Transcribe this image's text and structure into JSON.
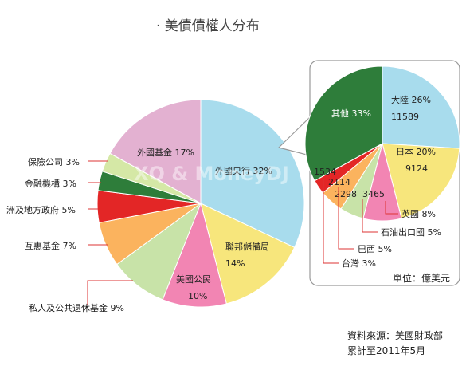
{
  "title": "· 美債債權人分布",
  "source_line1": "資料來源：美國財政部",
  "source_line2": "累計至2011年5月",
  "unit_label": "單位：億美元",
  "watermark": "XQ & MoneyDJ",
  "chart_data": [
    {
      "type": "pie",
      "title": "美債債權人分布",
      "slices": [
        {
          "name": "外國央行",
          "pct_label": "32%",
          "value": 32,
          "color": "#a8dced"
        },
        {
          "name": "聯邦儲備局",
          "pct_label": "14%",
          "value": 14,
          "color": "#f7e67c"
        },
        {
          "name": "美國公民",
          "pct_label": "10%",
          "value": 10,
          "color": "#f285b3"
        },
        {
          "name": "私人及公共退休基金",
          "pct_label": "9%",
          "value": 9,
          "color": "#c8e3a8"
        },
        {
          "name": "互惠基金",
          "pct_label": "7%",
          "value": 7,
          "color": "#fbb35e"
        },
        {
          "name": "洲及地方政府",
          "pct_label": "5%",
          "value": 5,
          "color": "#e32626"
        },
        {
          "name": "金融機構",
          "pct_label": "3%",
          "value": 3,
          "color": "#2e7d3a"
        },
        {
          "name": "保險公司",
          "pct_label": "3%",
          "value": 3,
          "color": "#d5e8a6"
        },
        {
          "name": "外國基金",
          "pct_label": "17%",
          "value": 17,
          "color": "#e3b1d1"
        }
      ]
    },
    {
      "type": "pie",
      "title": "外國央行",
      "unit": "億美元",
      "slices": [
        {
          "name": "大陸",
          "pct_label": "26%",
          "amount": 11589,
          "value": 26,
          "color": "#a8dced"
        },
        {
          "name": "日本",
          "pct_label": "20%",
          "amount": 9124,
          "value": 20,
          "color": "#f7e67c"
        },
        {
          "name": "英國",
          "pct_label": "8%",
          "amount": 3465,
          "value": 8,
          "color": "#f285b3"
        },
        {
          "name": "石油出口國",
          "pct_label": "5%",
          "amount": 2298,
          "value": 5,
          "color": "#c8e3a8"
        },
        {
          "name": "巴西",
          "pct_label": "5%",
          "amount": 2114,
          "value": 5,
          "color": "#fbb35e"
        },
        {
          "name": "台灣",
          "pct_label": "3%",
          "amount": 1534,
          "value": 3,
          "color": "#e32626"
        },
        {
          "name": "其他",
          "pct_label": "33%",
          "value": 33,
          "color": "#2e7d3a"
        }
      ]
    }
  ]
}
